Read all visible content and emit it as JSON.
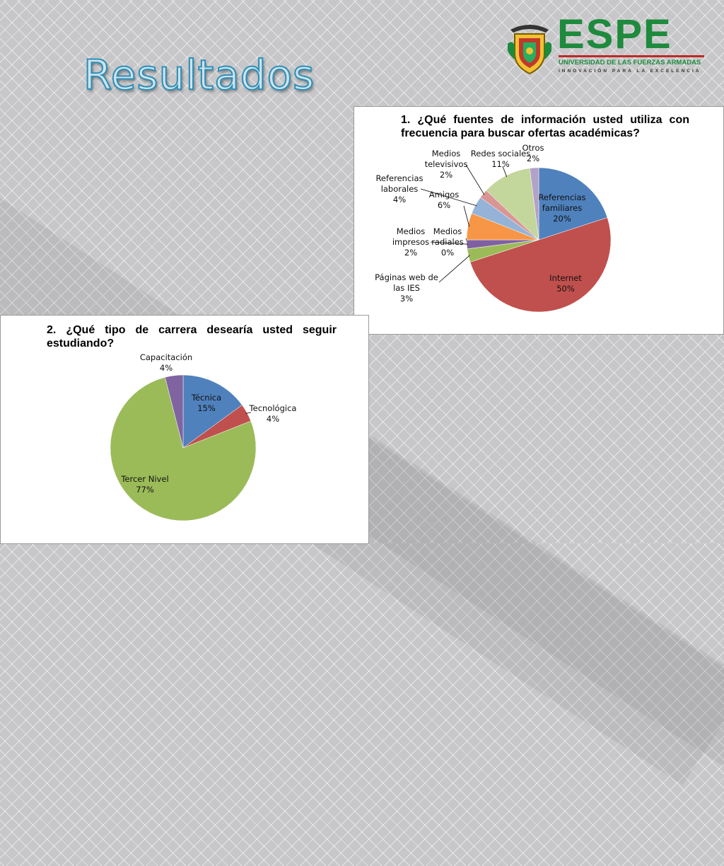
{
  "slide": {
    "title": "Resultados",
    "logo": {
      "name": "ESPE",
      "subtitle": "UNIVERSIDAD DE LAS FUERZAS ARMADAS",
      "motto": "INNOVACIÓN PARA LA EXCELENCIA",
      "icon": "university-shield-icon"
    }
  },
  "chart_data": [
    {
      "type": "pie",
      "title": "1. ¿Qué fuentes de información usted utiliza con frecuencia para buscar ofertas académicas?",
      "slices": [
        {
          "name": "Referencias familiares",
          "lines": [
            "Referencias",
            "familiares"
          ],
          "value": 20,
          "label": "20%",
          "color": "#4f81bd"
        },
        {
          "name": "Internet",
          "lines": [
            "Internet"
          ],
          "value": 50,
          "label": "50%",
          "color": "#c0504d"
        },
        {
          "name": "Páginas web de las IES",
          "lines": [
            "Páginas web de",
            "las IES"
          ],
          "value": 3,
          "label": "3%",
          "color": "#9bbb59"
        },
        {
          "name": "Medios radiales",
          "lines": [
            "Medios",
            "radiales"
          ],
          "value": 0,
          "label": "0%",
          "color": "#8064a2"
        },
        {
          "name": "Medios impresos",
          "lines": [
            "Medios",
            "impresos"
          ],
          "value": 2,
          "label": "2%",
          "color": "#7f60a0"
        },
        {
          "name": "Amigos",
          "lines": [
            "Amigos"
          ],
          "value": 6,
          "label": "6%",
          "color": "#f79646"
        },
        {
          "name": "Referencias laborales",
          "lines": [
            "Referencias",
            "laborales"
          ],
          "value": 4,
          "label": "4%",
          "color": "#95b3d7"
        },
        {
          "name": "Medios televisivos",
          "lines": [
            "Medios",
            "televisivos"
          ],
          "value": 2,
          "label": "2%",
          "color": "#d99694"
        },
        {
          "name": "Redes sociales",
          "lines": [
            "Redes sociales"
          ],
          "value": 11,
          "label": "11%",
          "color": "#c3d69b"
        },
        {
          "name": "Otros",
          "lines": [
            "Otros"
          ],
          "value": 2,
          "label": "2%",
          "color": "#b3a2c7"
        }
      ]
    },
    {
      "type": "pie",
      "title": "2. ¿Qué tipo de carrera desearía usted seguir estudiando?",
      "slices": [
        {
          "name": "Técnica",
          "lines": [
            "Técnica"
          ],
          "value": 15,
          "label": "15%",
          "color": "#4f81bd"
        },
        {
          "name": "Tecnológica",
          "lines": [
            "Tecnológica"
          ],
          "value": 4,
          "label": "4%",
          "color": "#c0504d"
        },
        {
          "name": "Tercer Nivel",
          "lines": [
            "Tercer Nivel"
          ],
          "value": 77,
          "label": "77%",
          "color": "#9bbb59"
        },
        {
          "name": "Capacitación",
          "lines": [
            "Capacitación"
          ],
          "value": 4,
          "label": "4%",
          "color": "#8064a2"
        }
      ]
    }
  ]
}
